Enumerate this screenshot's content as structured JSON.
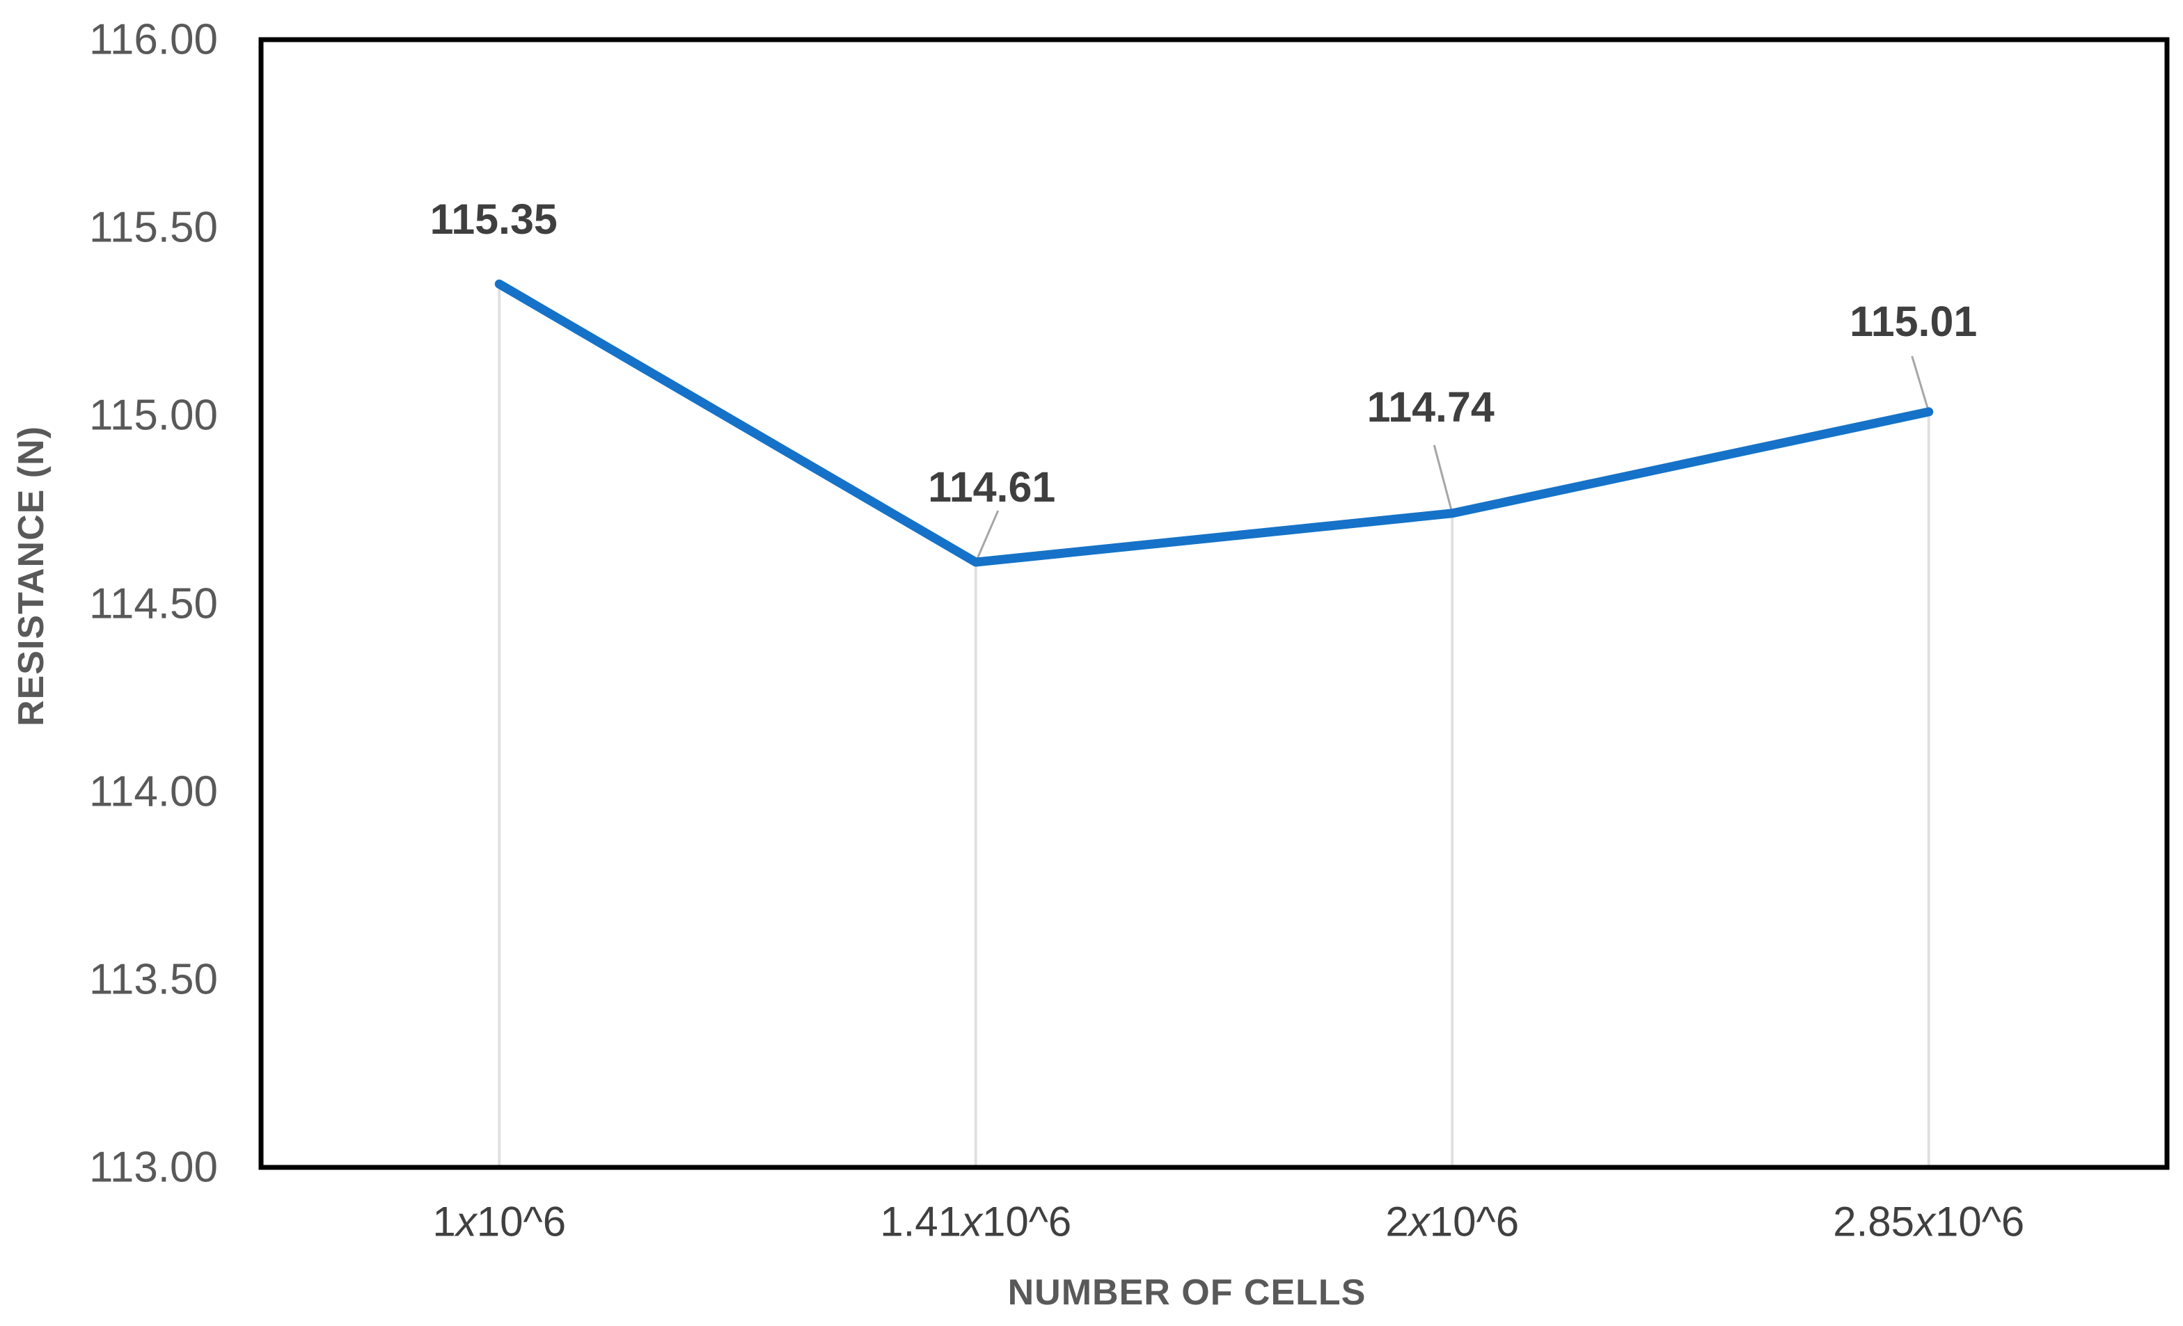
{
  "chart_data": {
    "type": "line",
    "title": "",
    "xlabel": "NUMBER OF CELLS",
    "ylabel": "RESISTANCE (N)",
    "categories": [
      "1x10^6",
      "1.41x10^6",
      "2x10^6",
      "2.85x10^6"
    ],
    "values": [
      115.35,
      114.61,
      114.74,
      115.01
    ],
    "data_labels": [
      "115.35",
      "114.61",
      "114.74",
      "115.01"
    ],
    "series": [
      {
        "name": "Resistance",
        "values": [
          115.35,
          114.61,
          114.74,
          115.01
        ]
      }
    ],
    "ylim": [
      113.0,
      116.0
    ],
    "y_ticks": [
      {
        "value": 116.0,
        "label": "116.00"
      },
      {
        "value": 115.5,
        "label": "115.50"
      },
      {
        "value": 115.0,
        "label": "115.00"
      },
      {
        "value": 114.5,
        "label": "114.50"
      },
      {
        "value": 114.0,
        "label": "114.00"
      },
      {
        "value": 113.5,
        "label": "113.50"
      },
      {
        "value": 113.0,
        "label": "113.00"
      }
    ],
    "grid": "vertical drop lines from each data point to x-axis only; no horizontal gridlines",
    "legend": "none",
    "colors": {
      "series_line": "#1572C8",
      "plot_border": "#000000",
      "drop_line": "#E0E0E0",
      "leader_line": "#A6A6A6",
      "y_tick_label": "#595959",
      "x_tick_label": "#404040",
      "data_label": "#3F3F3F",
      "axis_title": "#595959",
      "background": "#FFFFFF"
    }
  }
}
